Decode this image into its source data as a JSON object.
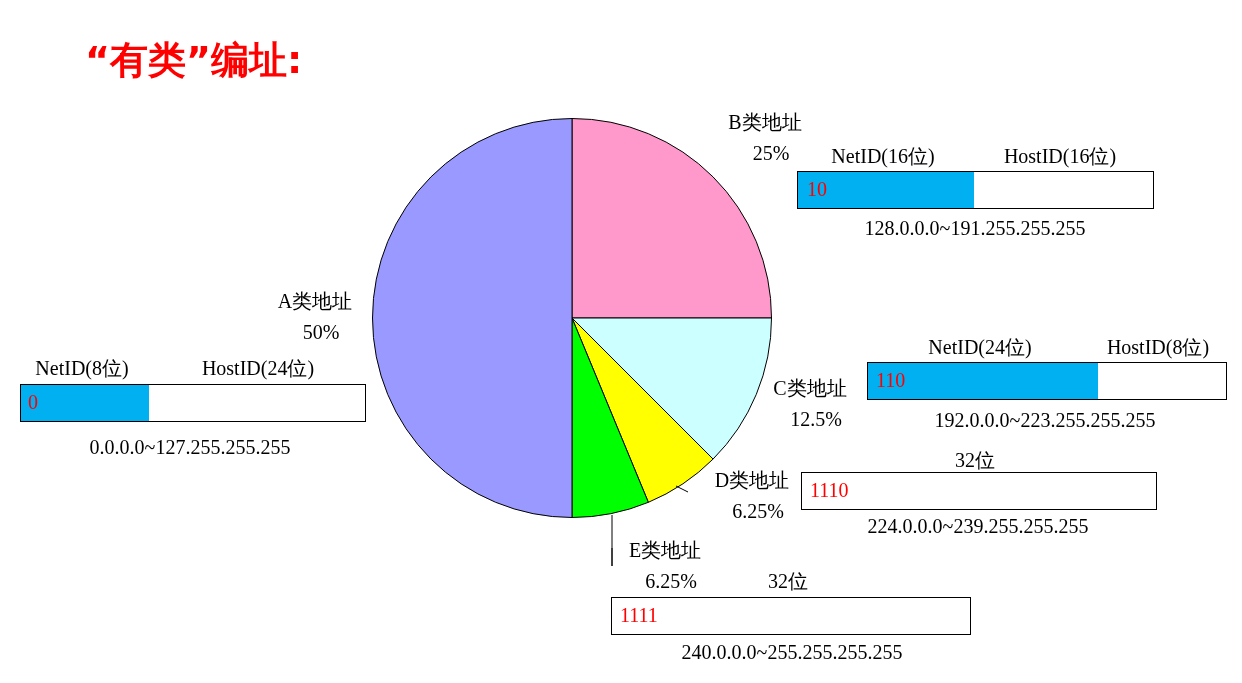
{
  "chart_data": {
    "type": "pie",
    "title": "“有类”编址:",
    "categories": [
      "B类地址",
      "C类地址",
      "D类地址",
      "E类地址",
      "A类地址"
    ],
    "values": [
      25,
      12.5,
      6.25,
      6.25,
      50
    ],
    "value_labels": [
      "25%",
      "12.5%",
      "6.25%",
      "6.25%",
      "50%"
    ],
    "colors": [
      "#ff99cc",
      "#ccffff",
      "#ffff00",
      "#00ff00",
      "#9999ff"
    ],
    "annotations": [
      "NetID(16位)",
      "HostID(16位)",
      "10",
      "128.0.0.0~191.255.255.255",
      "NetID(24位)",
      "HostID(8位)",
      "110",
      "192.0.0.0~223.255.255.255",
      "NetID(8位)",
      "HostID(24位)",
      "0",
      "0.0.0.0~127.255.255.255",
      "32位",
      "1110",
      "224.0.0.0~239.255.255.255",
      "32位",
      "1111",
      "240.0.0.0~255.255.255.255"
    ]
  }
}
